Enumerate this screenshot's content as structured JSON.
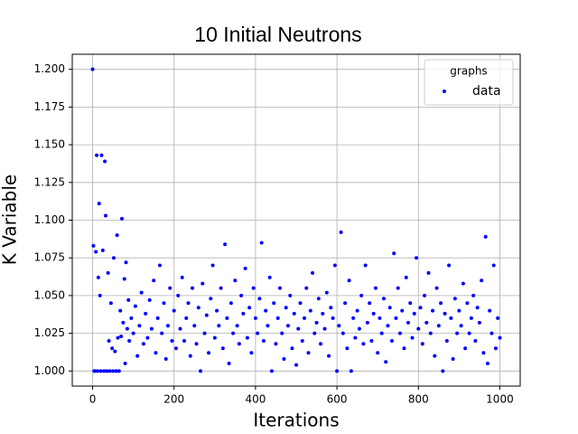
{
  "chart_data": {
    "type": "scatter",
    "title": "10 Initial Neutrons",
    "x_label": "Iterations",
    "y_label": "K Variable",
    "legend_title": "graphs",
    "legend_position": "upper right",
    "grid": true,
    "xlim": [
      -50,
      1050
    ],
    "xticks": [
      0,
      200,
      400,
      600,
      800,
      1000
    ],
    "ylim": [
      0.99,
      1.21
    ],
    "yticks": [
      {
        "value": 1.0,
        "label": "1.000"
      },
      {
        "value": 1.025,
        "label": "1.025"
      },
      {
        "value": 1.05,
        "label": "1.050"
      },
      {
        "value": 1.075,
        "label": "1.075"
      },
      {
        "value": 1.1,
        "label": "1.100"
      },
      {
        "value": 1.125,
        "label": "1.125"
      },
      {
        "value": 1.15,
        "label": "1.150"
      },
      {
        "value": 1.175,
        "label": "1.175"
      },
      {
        "value": 1.2,
        "label": "1.200"
      }
    ],
    "x": [
      0,
      2,
      4,
      6,
      8,
      10,
      12,
      14,
      16,
      18,
      20,
      22,
      25,
      28,
      30,
      32,
      35,
      38,
      40,
      42,
      45,
      48,
      50,
      52,
      55,
      58,
      60,
      62,
      65,
      68,
      70,
      72,
      75,
      78,
      80,
      82,
      85,
      88,
      90,
      95,
      100,
      105,
      110,
      115,
      120,
      125,
      130,
      135,
      140,
      145,
      150,
      155,
      160,
      165,
      170,
      175,
      180,
      185,
      190,
      195,
      200,
      205,
      210,
      215,
      220,
      225,
      230,
      235,
      240,
      245,
      250,
      255,
      260,
      265,
      270,
      275,
      280,
      285,
      290,
      295,
      300,
      305,
      310,
      315,
      320,
      325,
      330,
      335,
      340,
      345,
      350,
      355,
      360,
      365,
      370,
      375,
      380,
      385,
      390,
      395,
      400,
      405,
      410,
      415,
      420,
      425,
      430,
      435,
      440,
      445,
      450,
      455,
      460,
      465,
      470,
      475,
      480,
      485,
      490,
      495,
      500,
      505,
      510,
      515,
      520,
      525,
      530,
      535,
      540,
      545,
      550,
      555,
      560,
      565,
      570,
      575,
      580,
      585,
      590,
      595,
      600,
      605,
      610,
      615,
      620,
      625,
      630,
      635,
      640,
      645,
      650,
      655,
      660,
      665,
      670,
      675,
      680,
      685,
      690,
      695,
      700,
      705,
      710,
      715,
      720,
      725,
      730,
      735,
      740,
      745,
      750,
      755,
      760,
      765,
      770,
      775,
      780,
      785,
      790,
      795,
      800,
      805,
      810,
      815,
      820,
      825,
      830,
      835,
      840,
      845,
      850,
      855,
      860,
      865,
      870,
      875,
      880,
      885,
      890,
      895,
      900,
      905,
      910,
      915,
      920,
      925,
      930,
      935,
      940,
      945,
      950,
      955,
      960,
      965,
      970,
      975,
      980,
      985,
      990,
      995,
      1000
    ],
    "series": [
      {
        "name": "data",
        "color": "#0000ff",
        "values": [
          1.2,
          1.083,
          1.0,
          1.0,
          1.079,
          1.143,
          1.0,
          1.062,
          1.111,
          1.05,
          1.0,
          1.143,
          1.08,
          1.0,
          1.139,
          1.103,
          1.0,
          1.065,
          1.02,
          1.0,
          1.045,
          1.015,
          1.0,
          1.075,
          1.013,
          1.0,
          1.09,
          1.022,
          1.0,
          1.04,
          1.023,
          1.101,
          1.032,
          1.061,
          1.005,
          1.072,
          1.028,
          1.047,
          1.02,
          1.035,
          1.025,
          1.043,
          1.01,
          1.03,
          1.052,
          1.018,
          1.038,
          1.022,
          1.047,
          1.028,
          1.06,
          1.012,
          1.035,
          1.07,
          1.025,
          1.045,
          1.008,
          1.03,
          1.055,
          1.02,
          1.04,
          1.015,
          1.05,
          1.028,
          1.062,
          1.02,
          1.035,
          1.045,
          1.01,
          1.055,
          1.03,
          1.018,
          1.042,
          1.0,
          1.058,
          1.025,
          1.037,
          1.012,
          1.048,
          1.07,
          1.022,
          1.04,
          1.03,
          1.055,
          1.015,
          1.084,
          1.035,
          1.005,
          1.045,
          1.025,
          1.06,
          1.03,
          1.018,
          1.05,
          1.038,
          1.068,
          1.022,
          1.042,
          1.012,
          1.055,
          1.035,
          1.025,
          1.048,
          1.085,
          1.02,
          1.04,
          1.03,
          1.062,
          1.0,
          1.045,
          1.018,
          1.035,
          1.055,
          1.025,
          1.008,
          1.042,
          1.03,
          1.05,
          1.015,
          1.038,
          1.004,
          1.028,
          1.045,
          1.02,
          1.035,
          1.055,
          1.012,
          1.04,
          1.065,
          1.025,
          1.032,
          1.048,
          1.018,
          1.038,
          1.028,
          1.052,
          1.01,
          1.042,
          1.035,
          1.07,
          1.0,
          1.03,
          1.092,
          1.025,
          1.045,
          1.015,
          1.06,
          1.0,
          1.035,
          1.022,
          1.04,
          1.028,
          1.05,
          1.018,
          1.07,
          1.032,
          1.045,
          1.02,
          1.038,
          1.055,
          1.012,
          1.035,
          1.025,
          1.048,
          1.006,
          1.03,
          1.042,
          1.02,
          1.078,
          1.035,
          1.055,
          1.025,
          1.04,
          1.015,
          1.062,
          1.032,
          1.045,
          1.022,
          1.038,
          1.075,
          1.028,
          1.042,
          1.018,
          1.05,
          1.032,
          1.065,
          1.025,
          1.04,
          1.01,
          1.055,
          1.03,
          1.045,
          1.0,
          1.038,
          1.02,
          1.07,
          1.035,
          1.008,
          1.048,
          1.025,
          1.04,
          1.03,
          1.058,
          1.015,
          1.045,
          1.025,
          1.035,
          1.05,
          1.02,
          1.042,
          1.032,
          1.06,
          1.012,
          1.089,
          1.005,
          1.04,
          1.025,
          1.07,
          1.015,
          1.035,
          1.022
        ]
      }
    ]
  }
}
